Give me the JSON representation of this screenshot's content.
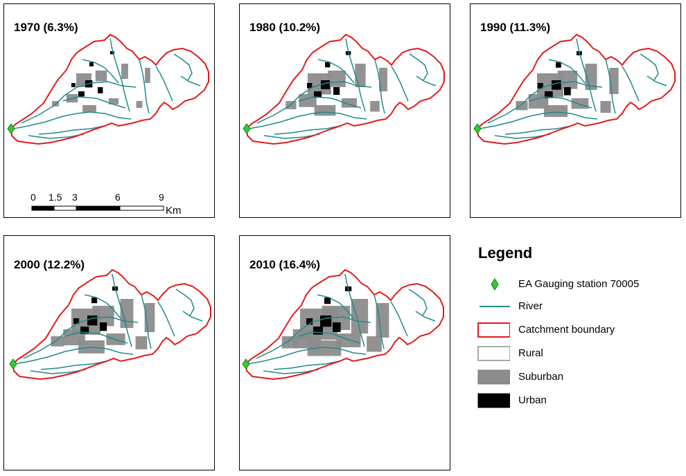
{
  "panels": [
    {
      "title": "1970 (6.3%)",
      "level": "low"
    },
    {
      "title": "1980 (10.2%)",
      "level": "mid"
    },
    {
      "title": "1990 (11.3%)",
      "level": "mid2"
    },
    {
      "title": "2000 (12.2%)",
      "level": "mid3"
    },
    {
      "title": "2010 (16.4%)",
      "level": "high"
    }
  ],
  "scalebar": {
    "ticks": [
      "0",
      "1.5",
      "3",
      "6",
      "9"
    ],
    "unit": "Km"
  },
  "legend": {
    "title": "Legend",
    "items": [
      {
        "label": "EA Gauging station 70005",
        "symbol": "diamond-icon"
      },
      {
        "label": "River",
        "symbol": "river-line"
      },
      {
        "label": "Catchment boundary",
        "symbol": "boundary-box"
      },
      {
        "label": "Rural",
        "symbol": "rural-box"
      },
      {
        "label": "Suburban",
        "symbol": "suburban-box"
      },
      {
        "label": "Urban",
        "symbol": "urban-box"
      }
    ]
  },
  "colors": {
    "boundary": "#e31a1c",
    "river": "#1f8a8a",
    "suburban": "#8c8c8c",
    "urban": "#000000",
    "station": "#33cc33"
  }
}
